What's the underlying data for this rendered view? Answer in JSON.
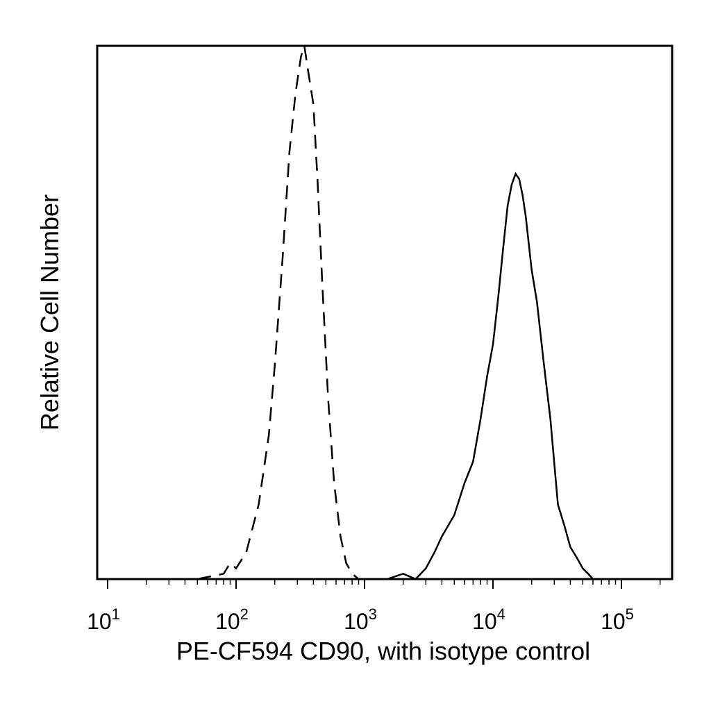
{
  "chart_data": {
    "type": "area",
    "title": "",
    "xlabel": "PE-CF594 CD90, with isotype control",
    "ylabel": "Relative Cell Number",
    "x_scale": "log",
    "xlim": [
      7,
      25000000000000
    ],
    "xlim_note": "",
    "ylim": [
      0,
      100
    ],
    "grid": false,
    "legend": "none",
    "x_ticks": [
      {
        "base": "10",
        "exp": "1",
        "value": 10
      },
      {
        "base": "10",
        "exp": "2",
        "value": 100
      },
      {
        "base": "10",
        "exp": "3",
        "value": 1000
      },
      {
        "base": "10",
        "exp": "4",
        "value": 10000
      },
      {
        "base": "10",
        "exp": "5",
        "value": 100000
      }
    ],
    "series": [
      {
        "style": "dashed",
        "color": "#000000",
        "x": [
          50,
          80,
          90,
          100,
          120,
          150,
          180,
          200,
          230,
          260,
          290,
          320,
          340,
          360,
          400,
          430,
          470,
          520,
          580,
          650,
          720,
          800,
          900
        ],
        "y": [
          0,
          1,
          3,
          2,
          5,
          14,
          27,
          40,
          60,
          80,
          91,
          98,
          100,
          96,
          89,
          75,
          55,
          34,
          18,
          8,
          3,
          1,
          0
        ]
      },
      {
        "style": "solid",
        "color": "#000000",
        "x": [
          1500,
          2000,
          2500,
          3000,
          3500,
          4000,
          5000,
          6000,
          7000,
          8000,
          9000,
          10000,
          11000,
          12000,
          13000,
          14000,
          15000,
          16000,
          17000,
          18000,
          20000,
          22000,
          25000,
          28000,
          32000,
          36000,
          40000,
          45000,
          50000,
          55000,
          60000,
          65000
        ],
        "y": [
          0,
          1,
          0,
          2,
          5,
          8,
          12,
          18,
          22,
          30,
          38,
          44,
          53,
          62,
          70,
          74,
          76,
          75,
          72,
          68,
          58,
          52,
          40,
          30,
          14,
          10,
          6,
          4,
          2,
          1,
          0,
          0
        ]
      }
    ]
  }
}
